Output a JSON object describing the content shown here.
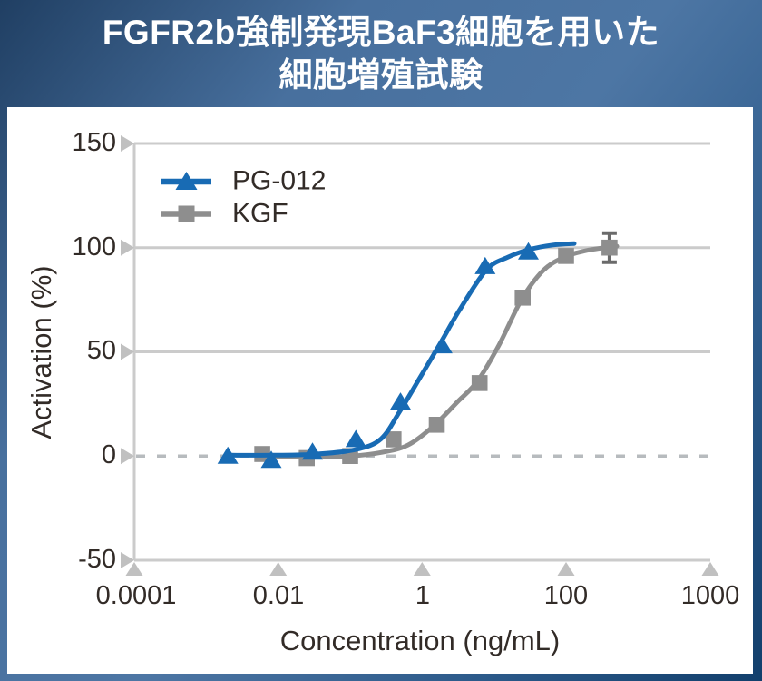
{
  "header": {
    "title_line1": "FGFR2b強制発現BaF3細胞を用いた",
    "title_line2": "細胞増殖試験"
  },
  "colors": {
    "title_bar_dark": "#1c3c5f",
    "title_bar_light": "#4d76a4",
    "panel": "#ffffff",
    "grid": "#cbcbcb",
    "zero_dash": "#b7bbbe",
    "tick_marker": "#c0c0c0",
    "text": "#322b27",
    "pg012_blue": "#186bb4",
    "kgf_gray": "#8e8e8e",
    "error_bar": "#6a6a6a"
  },
  "chart_data": {
    "type": "line",
    "title": "FGFR2b強制発現BaF3細胞を用いた細胞増殖試験",
    "xlabel": "Concentration (ng/mL)",
    "ylabel": "Activation (%)",
    "x_scale": "log",
    "xlim": [
      0.0001,
      1000
    ],
    "ylim": [
      -50,
      150
    ],
    "x_tick_labels": [
      "0.0001",
      "0.01",
      "1",
      "100",
      "1000"
    ],
    "x_tick_values": [
      0.0001,
      0.01,
      1,
      100,
      1000
    ],
    "y_tick_labels": [
      "150",
      "100",
      "50",
      "0",
      "-50"
    ],
    "y_tick_values": [
      150,
      100,
      50,
      0,
      -50
    ],
    "grid": true,
    "zero_line_dashed": true,
    "legend_position": "top-left",
    "series": [
      {
        "name": "PG-012",
        "color": "#186bb4",
        "marker": "triangle",
        "x": [
          0.002,
          0.008,
          0.03,
          0.12,
          0.5,
          1.9,
          7.5,
          30
        ],
        "y": [
          0,
          -2,
          2,
          8,
          26,
          53,
          91,
          98
        ],
        "error_bars": [],
        "fit_curve": {
          "x": [
            0.002,
            0.0087,
            0.032,
            0.12,
            0.27,
            0.5,
            0.93,
            1.76,
            3.3,
            7.8,
            15.5,
            30,
            66,
            114
          ],
          "y": [
            0.4,
            0.4,
            0.9,
            3.1,
            8.3,
            22,
            37.5,
            53.6,
            70,
            89.3,
            95.4,
            99,
            101.3,
            102
          ]
        }
      },
      {
        "name": "KGF",
        "color": "#8e8e8e",
        "marker": "square",
        "x": [
          0.006,
          0.025,
          0.1,
          0.4,
          1.6,
          6.3,
          25,
          100,
          200
        ],
        "y": [
          1,
          -1,
          0,
          8,
          15,
          35,
          76,
          96,
          100
        ],
        "error_bars": [
          {
            "index": 8,
            "plus": 7,
            "minus": 7
          }
        ],
        "fit_curve": {
          "x": [
            0.006,
            0.025,
            0.1,
            0.27,
            0.63,
            1.4,
            3.1,
            5.9,
            11.6,
            24,
            48,
            95,
            136,
            195,
            225
          ],
          "y": [
            -0.4,
            -0.4,
            0,
            1.7,
            5.2,
            14,
            26,
            36,
            53,
            75,
            89,
            95.5,
            98.5,
            100.2,
            100.7
          ]
        }
      }
    ]
  }
}
